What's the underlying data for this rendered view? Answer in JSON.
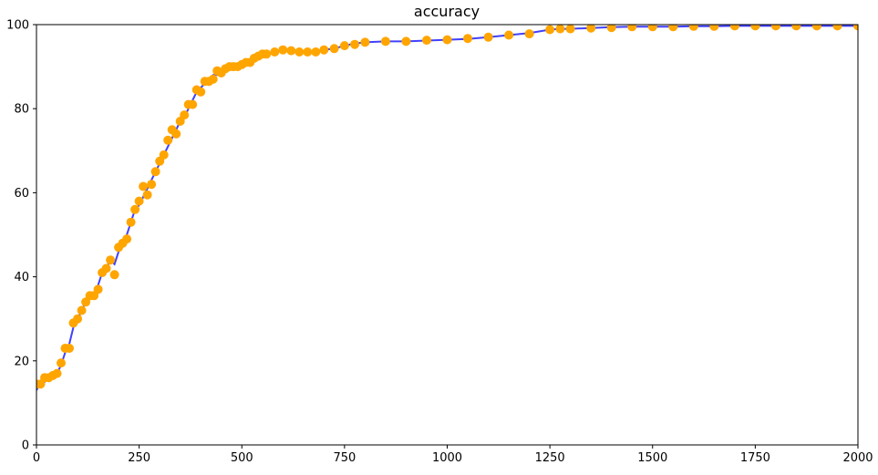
{
  "chart_data": {
    "type": "line",
    "title": "accuracy",
    "xlabel": "",
    "ylabel": "",
    "xlim": [
      0,
      2000
    ],
    "ylim": [
      0,
      100
    ],
    "xticks": [
      0,
      250,
      500,
      750,
      1000,
      1250,
      1500,
      1750,
      2000
    ],
    "yticks": [
      0,
      20,
      40,
      60,
      80,
      100
    ],
    "grid": false,
    "legend": "none",
    "series": [
      {
        "style": "line",
        "color": "#0000ff",
        "x": [
          0,
          10,
          20,
          30,
          40,
          50,
          60,
          70,
          80,
          90,
          100,
          110,
          120,
          130,
          140,
          150,
          160,
          170,
          180,
          190,
          200,
          210,
          220,
          230,
          240,
          250,
          260,
          270,
          280,
          290,
          300,
          310,
          320,
          330,
          340,
          350,
          360,
          370,
          380,
          390,
          400,
          410,
          420,
          430,
          440,
          450,
          460,
          470,
          480,
          490,
          500,
          510,
          520,
          530,
          540,
          550,
          560,
          580,
          600,
          620,
          640,
          660,
          680,
          700,
          725,
          750,
          775,
          800,
          850,
          900,
          950,
          1000,
          1050,
          1100,
          1150,
          1200,
          1250,
          1275,
          1300,
          1350,
          1400,
          1450,
          1500,
          1550,
          1600,
          1650,
          1700,
          1750,
          1800,
          1850,
          1900,
          1950,
          2000
        ],
        "y": [
          13,
          15,
          15,
          16,
          16,
          17,
          19,
          22,
          24,
          28,
          30,
          32,
          34,
          35,
          36,
          38,
          41,
          42,
          44,
          43,
          46,
          48,
          50,
          53,
          56,
          57,
          59,
          61,
          63,
          65,
          67,
          69,
          71,
          73,
          75,
          77,
          78,
          80,
          82,
          84,
          85,
          86,
          87,
          88,
          88,
          89,
          89.5,
          89.8,
          90,
          90,
          90.5,
          91,
          91.2,
          91.8,
          92.5,
          93,
          93,
          93.5,
          94,
          94,
          93.6,
          93.5,
          93.5,
          94,
          94.3,
          95,
          95.5,
          95.8,
          96,
          96,
          96.2,
          96.4,
          96.6,
          97,
          97.5,
          98,
          98.8,
          99,
          99,
          99.2,
          99.4,
          99.5,
          99.5,
          99.5,
          99.6,
          99.6,
          99.7,
          99.7,
          99.7,
          99.7,
          99.7,
          99.7,
          99.7
        ]
      },
      {
        "style": "markers",
        "color": "#ffa500",
        "x": [
          0,
          10,
          20,
          30,
          40,
          50,
          60,
          70,
          80,
          90,
          100,
          110,
          120,
          130,
          140,
          150,
          160,
          170,
          180,
          190,
          200,
          210,
          220,
          230,
          240,
          250,
          260,
          270,
          280,
          290,
          300,
          310,
          320,
          330,
          340,
          350,
          360,
          370,
          380,
          390,
          400,
          410,
          420,
          430,
          440,
          450,
          460,
          470,
          480,
          490,
          500,
          510,
          520,
          530,
          540,
          550,
          560,
          580,
          600,
          620,
          640,
          660,
          680,
          700,
          725,
          750,
          775,
          800,
          850,
          900,
          950,
          1000,
          1050,
          1100,
          1150,
          1200,
          1250,
          1275,
          1300,
          1350,
          1400,
          1450,
          1500,
          1550,
          1600,
          1650,
          1700,
          1750,
          1800,
          1850,
          1900,
          1950,
          2000
        ],
        "y": [
          14.5,
          14.5,
          16,
          16,
          16.5,
          17,
          19.5,
          23,
          23,
          29,
          30,
          32,
          34,
          35.5,
          35.5,
          37,
          41,
          42,
          44,
          40.5,
          47,
          48,
          49,
          53,
          56,
          58,
          61.5,
          59.5,
          62,
          65,
          67.5,
          69,
          72.5,
          75,
          74,
          77,
          78.5,
          81,
          81,
          84.5,
          84,
          86.5,
          86.5,
          87,
          89,
          88.5,
          89.5,
          90,
          90,
          90,
          90.5,
          91,
          91,
          92,
          92.5,
          93,
          93,
          93.5,
          94,
          93.8,
          93.5,
          93.5,
          93.5,
          94,
          94.3,
          95,
          95.3,
          95.8,
          96,
          96,
          96.3,
          96.4,
          96.7,
          97,
          97.5,
          97.8,
          98.8,
          99,
          99,
          99.2,
          99.3,
          99.5,
          99.5,
          99.5,
          99.6,
          99.6,
          99.7,
          99.7,
          99.7,
          99.7,
          99.7,
          99.7,
          99.7
        ]
      }
    ]
  }
}
